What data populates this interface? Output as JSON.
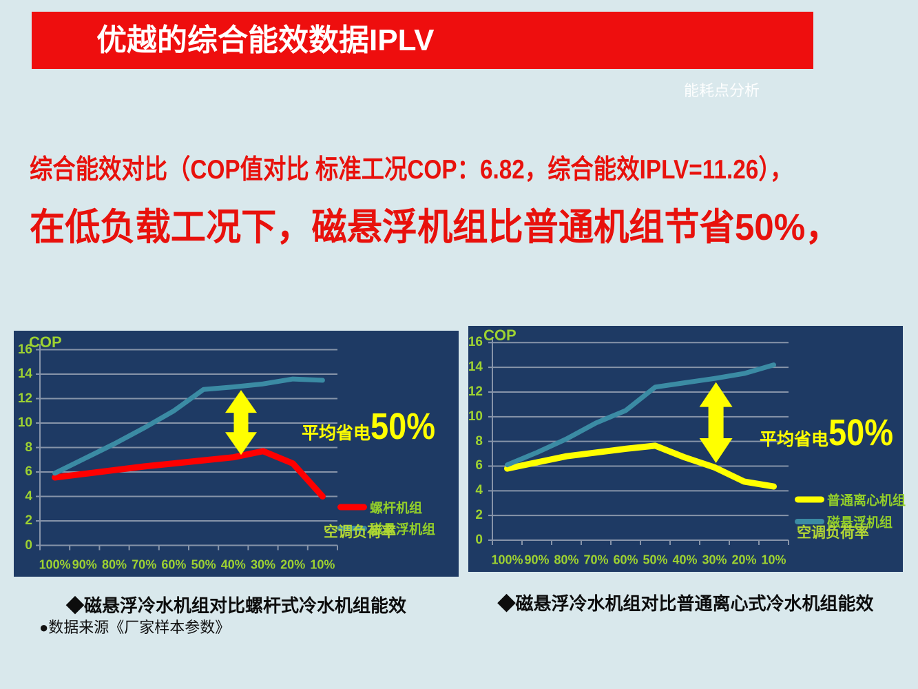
{
  "slide": {
    "banner_title": "优越的综合能效数据IPLV",
    "watermark": "能耗点分析",
    "headline_small": "综合能效对比（COP值对比 标准工况COP：6.82，综合能效IPLV=11.26），",
    "headline_large": "在低负载工况下，磁悬浮机组比普通机组节省50%，",
    "source_note": "●数据来源《厂家样本参数》",
    "colors": {
      "background": "#d9e8ec",
      "banner_red": "#ee0e0e",
      "headline_red": "#e8110c",
      "panel_navy": "#1e3a64",
      "grid_gray": "#8794a9",
      "tick_green": "#9ed231",
      "legend_green": "#93cf2a",
      "axis_title_green": "#b3d735",
      "annotation_yellow": "#ffff00",
      "teal_line": "#3b8ba4",
      "red_line": "#ff0000",
      "yellow_line": "#ffff00"
    }
  },
  "chart_data": [
    {
      "type": "line",
      "title": "◆磁悬浮冷水机组对比螺杆式冷水机组能效",
      "ylabel": "COP",
      "xlabel": "空调负荷率",
      "categories": [
        "100%",
        "90%",
        "80%",
        "70%",
        "60%",
        "50%",
        "40%",
        "30%",
        "20%",
        "10%"
      ],
      "ylim": [
        0,
        16
      ],
      "yticks": [
        0,
        2,
        4,
        6,
        8,
        10,
        12,
        14,
        16
      ],
      "grid": true,
      "legend_position": "right-bottom",
      "series": [
        {
          "name": "螺杆机组",
          "color": "#ff0000",
          "width": 9,
          "values": [
            5.55,
            5.85,
            6.15,
            6.45,
            6.7,
            6.95,
            7.2,
            7.7,
            6.7,
            4.0
          ]
        },
        {
          "name": "磁悬浮机组",
          "color": "#3b8ba4",
          "width": 7,
          "values": [
            5.9,
            7.1,
            8.3,
            9.6,
            11.0,
            12.75,
            12.95,
            13.2,
            13.6,
            13.5
          ]
        }
      ],
      "annotation": {
        "prefix": "平均省电",
        "value": "50%"
      },
      "arrow": {
        "x_index": 6.26,
        "cop_from": 7.4,
        "cop_to": 12.7
      }
    },
    {
      "type": "line",
      "title": "◆磁悬浮冷水机组对比普通离心式冷水机组能效",
      "ylabel": "COP",
      "xlabel": "空调负荷率",
      "categories": [
        "100%",
        "90%",
        "80%",
        "70%",
        "60%",
        "50%",
        "40%",
        "30%",
        "20%",
        "10%"
      ],
      "ylim": [
        0,
        16
      ],
      "yticks": [
        0,
        2,
        4,
        6,
        8,
        10,
        12,
        14,
        16
      ],
      "grid": true,
      "legend_position": "right-bottom",
      "series": [
        {
          "name": "普通离心机组",
          "color": "#ffff00",
          "width": 9,
          "values": [
            5.8,
            6.3,
            6.8,
            7.1,
            7.4,
            7.65,
            6.7,
            5.9,
            4.75,
            4.35
          ]
        },
        {
          "name": "磁悬浮机组",
          "color": "#3b8ba4",
          "width": 7,
          "values": [
            6.1,
            7.1,
            8.2,
            9.5,
            10.5,
            12.4,
            12.75,
            13.1,
            13.5,
            14.2
          ]
        }
      ],
      "annotation": {
        "prefix": "平均省电",
        "value": "50%"
      },
      "arrow": {
        "x_index": 7.05,
        "cop_from": 6.25,
        "cop_to": 12.8
      }
    }
  ]
}
